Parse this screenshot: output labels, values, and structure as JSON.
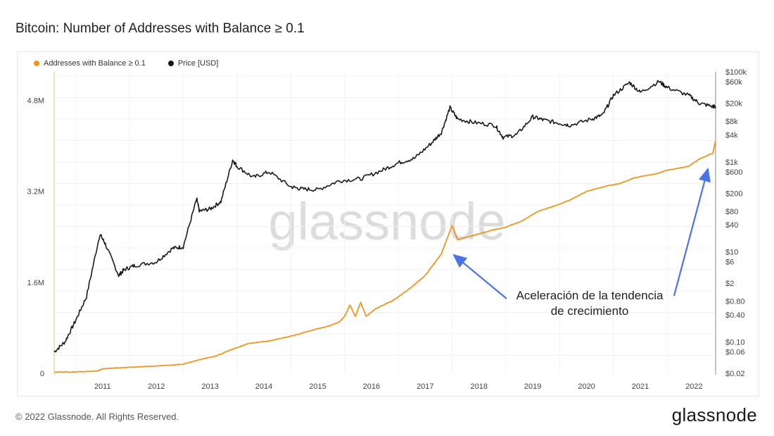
{
  "header": {
    "title": "Bitcoin: Number of Addresses with Balance ≥ 0.1"
  },
  "footer": {
    "copyright": "© 2022 Glassnode. All Rights Reserved.",
    "brand": "glassnode"
  },
  "watermark": "glassnode",
  "colors": {
    "addresses": "#F2951F",
    "price": "#1a1a1a",
    "arrow": "#4A73E8"
  },
  "chart_data": {
    "type": "line",
    "title": "Bitcoin: Number of Addresses with Balance ≥ 0.1",
    "grid": true,
    "legend_position": "top-left",
    "x_range": [
      2010.6,
      2022.9
    ],
    "x_ticks": [
      "2011",
      "2012",
      "2013",
      "2014",
      "2015",
      "2016",
      "2017",
      "2018",
      "2019",
      "2020",
      "2021",
      "2022"
    ],
    "y_left": {
      "ticks": [
        "0",
        "1.6M",
        "3.2M",
        "4.8M"
      ],
      "tick_values": [
        0,
        1600000,
        3200000,
        4800000
      ],
      "range": [
        0,
        5300000
      ]
    },
    "y_right": {
      "scale": "log",
      "ticks": [
        "$0.02",
        "$0.06",
        "$0.10",
        "$0.40",
        "$0.80",
        "$2",
        "$6",
        "$10",
        "$40",
        "$80",
        "$200",
        "$600",
        "$1k",
        "$4k",
        "$8k",
        "$20k",
        "$60k",
        "$100k"
      ],
      "tick_values": [
        0.02,
        0.06,
        0.1,
        0.4,
        0.8,
        2,
        6,
        10,
        40,
        80,
        200,
        600,
        1000,
        4000,
        8000,
        20000,
        60000,
        100000
      ],
      "range": [
        0.02,
        100000
      ]
    },
    "series": [
      {
        "name": "Addresses with Balance ≥ 0.1",
        "axis": "left",
        "x": [
          2010.6,
          2011.0,
          2011.4,
          2011.5,
          2012.0,
          2012.3,
          2012.7,
          2013.0,
          2013.3,
          2013.6,
          2013.9,
          2014.2,
          2014.6,
          2015.0,
          2015.4,
          2015.7,
          2015.9,
          2016.0,
          2016.1,
          2016.2,
          2016.3,
          2016.4,
          2016.6,
          2016.9,
          2017.2,
          2017.5,
          2017.8,
          2017.9,
          2018.0,
          2018.1,
          2018.3,
          2018.6,
          2019.0,
          2019.3,
          2019.6,
          2019.9,
          2020.2,
          2020.5,
          2020.9,
          2021.1,
          2021.4,
          2021.8,
          2022.0,
          2022.4,
          2022.6,
          2022.85,
          2022.9
        ],
        "values": [
          20000,
          25000,
          40000,
          80000,
          105000,
          120000,
          140000,
          160000,
          240000,
          300000,
          420000,
          520000,
          570000,
          650000,
          760000,
          830000,
          900000,
          1000000,
          1200000,
          1000000,
          1250000,
          1000000,
          1150000,
          1280000,
          1480000,
          1720000,
          2100000,
          2350000,
          2600000,
          2350000,
          2400000,
          2480000,
          2570000,
          2680000,
          2850000,
          2940000,
          3050000,
          3200000,
          3300000,
          3330000,
          3440000,
          3510000,
          3570000,
          3640000,
          3770000,
          3870000,
          4100000
        ]
      },
      {
        "name": "Price [USD]",
        "axis": "right",
        "x": [
          2010.6,
          2010.8,
          2011.0,
          2011.2,
          2011.45,
          2011.55,
          2011.8,
          2011.9,
          2012.1,
          2012.5,
          2012.8,
          2013.0,
          2013.25,
          2013.3,
          2013.5,
          2013.7,
          2013.92,
          2014.0,
          2014.3,
          2014.6,
          2015.0,
          2015.2,
          2015.5,
          2015.9,
          2016.3,
          2016.7,
          2017.0,
          2017.3,
          2017.6,
          2017.8,
          2017.96,
          2018.1,
          2018.4,
          2018.8,
          2018.95,
          2019.2,
          2019.5,
          2019.7,
          2020.0,
          2020.2,
          2020.6,
          2020.8,
          2021.0,
          2021.3,
          2021.5,
          2021.85,
          2022.0,
          2022.4,
          2022.6,
          2022.85,
          2022.9
        ],
        "values": [
          0.06,
          0.1,
          0.3,
          1,
          25,
          15,
          3,
          4,
          5,
          6,
          12,
          13,
          150,
          80,
          90,
          130,
          1100,
          800,
          450,
          600,
          280,
          250,
          240,
          380,
          420,
          650,
          950,
          1200,
          2500,
          4500,
          16000,
          9000,
          7500,
          6500,
          3500,
          4000,
          10000,
          8500,
          7200,
          6500,
          9000,
          11000,
          30000,
          58000,
          35000,
          61000,
          45000,
          30000,
          20000,
          17000,
          16800
        ]
      }
    ],
    "annotations": [
      {
        "text_lines": [
          "Aceleración de la tendencia",
          "de crecimiento"
        ],
        "points_to": [
          "2018",
          "2022-11"
        ]
      }
    ]
  }
}
